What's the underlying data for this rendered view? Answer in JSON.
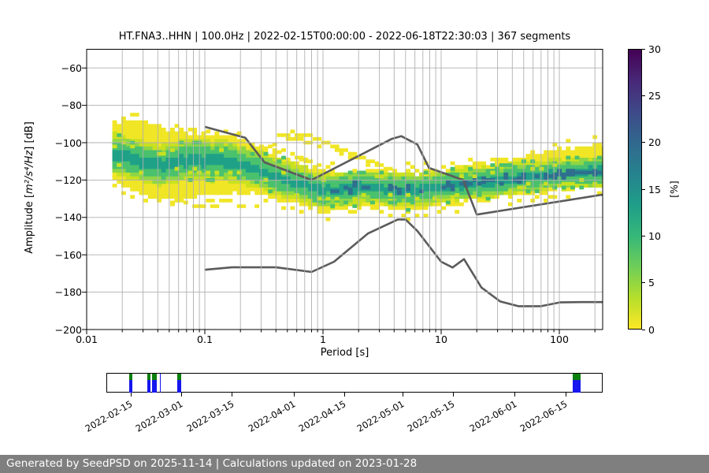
{
  "figure": {
    "footer_text": "Generated by SeedPSD on 2025-11-14 | Calculations updated on 2023-01-28"
  },
  "colors": {
    "frame": "#000000",
    "grid": "#b0b0b0",
    "noise_model": "#5b5b5b",
    "marker_green": "#0b800b",
    "marker_blue": "#1616ee",
    "footer_bg": "#7f7f7f",
    "footer_text": "#ffffff",
    "histogram_palette": [
      "#f0e626",
      "#c9e11f",
      "#8ed645",
      "#4ac16d",
      "#1fa188",
      "#2e6f8e"
    ],
    "colorbar_gradient_bottom_to_top": [
      "#fde725",
      "#b5de2b",
      "#6ece58",
      "#35b779",
      "#1f9e89",
      "#26828e",
      "#31688e",
      "#3e4989",
      "#482878",
      "#440154"
    ]
  },
  "chart_data": {
    "type": "heatmap",
    "title": "HT.FNA3..HHN | 100.0Hz | 2022-02-15T00:00:00 - 2022-06-18T22:30:03 | 367 segments",
    "x_axis": {
      "label": "Period [s]",
      "scale": "log",
      "range": [
        0.01,
        233
      ],
      "tick_values": [
        0.01,
        0.1,
        1,
        10,
        100
      ],
      "tick_labels": [
        "0.01",
        "0.1",
        "1",
        "10",
        "100"
      ],
      "grid": "both major and minor vertical gridlines"
    },
    "y_axis": {
      "label_prefix": "Amplitude [",
      "label_math": "m²/s⁴/Hz",
      "label_suffix": "] [dB]",
      "range": [
        -200,
        -50
      ],
      "tick_values": [
        -60,
        -80,
        -100,
        -120,
        -140,
        -160,
        -180,
        -200
      ],
      "tick_labels": [
        "−60",
        "−80",
        "−100",
        "−120",
        "−140",
        "−160",
        "−180",
        "−200"
      ],
      "grid": "major horizontal gridlines"
    },
    "colorbar": {
      "label": "[%]",
      "range": [
        0,
        30
      ],
      "tick_values": [
        0,
        5,
        10,
        15,
        20,
        25,
        30
      ],
      "tick_labels": [
        "0",
        "5",
        "10",
        "15",
        "20",
        "25",
        "30"
      ],
      "colormap": "viridis reversed (yellow = 0% to dark purple = 30%)"
    },
    "noise_models": {
      "note": "gray reference curves (period s, dB)",
      "high": [
        [
          0.1,
          -91.5
        ],
        [
          0.22,
          -97.4
        ],
        [
          0.32,
          -110.5
        ],
        [
          0.8,
          -120.0
        ],
        [
          3.8,
          -98.0
        ],
        [
          4.6,
          -96.5
        ],
        [
          6.3,
          -101.0
        ],
        [
          7.9,
          -113.5
        ],
        [
          15.4,
          -120.0
        ],
        [
          20.0,
          -138.5
        ],
        [
          233,
          -127.8
        ]
      ],
      "low": [
        [
          0.1,
          -168.0
        ],
        [
          0.17,
          -166.7
        ],
        [
          0.4,
          -166.7
        ],
        [
          0.8,
          -169.2
        ],
        [
          1.24,
          -163.7
        ],
        [
          2.4,
          -148.6
        ],
        [
          4.3,
          -141.1
        ],
        [
          5.0,
          -141.1
        ],
        [
          6.3,
          -147.3
        ],
        [
          10.0,
          -163.7
        ],
        [
          12.5,
          -166.8
        ],
        [
          15.6,
          -162.3
        ],
        [
          21.9,
          -177.5
        ],
        [
          31.6,
          -185.0
        ],
        [
          45.0,
          -187.5
        ],
        [
          70.0,
          -187.5
        ],
        [
          101.0,
          -185.5
        ],
        [
          154.0,
          -185.3
        ],
        [
          233,
          -185.3
        ]
      ]
    },
    "psd_histogram": {
      "description": "probability band: period vs amplitude dB, percentage coded by color (yellow low, teal/blue high)",
      "column_step_octaves": 0.125,
      "db_bin": 2,
      "spine_fields": [
        "period_s",
        "top_db",
        "bottom_db",
        "center_db",
        "w_outer_db",
        "w_mid_db",
        "w_core_db",
        "dense"
      ],
      "spine": [
        [
          0.0165,
          -89,
          -116,
          -106,
          11,
          7,
          3,
          0
        ],
        [
          0.02,
          -87.5,
          -124,
          -107,
          11,
          7,
          3,
          0
        ],
        [
          0.028,
          -89,
          -128,
          -110,
          11,
          7,
          3,
          0
        ],
        [
          0.04,
          -91.5,
          -130.5,
          -112,
          11,
          7,
          3,
          0
        ],
        [
          0.055,
          -93.5,
          -131,
          -110.5,
          11,
          7,
          3,
          0
        ],
        [
          0.075,
          -94,
          -129.5,
          -109,
          11,
          7,
          3,
          0
        ],
        [
          0.105,
          -94.5,
          -128.5,
          -109.5,
          11,
          7,
          3,
          0
        ],
        [
          0.15,
          -95.5,
          -127.5,
          -110,
          11,
          7,
          3,
          0
        ],
        [
          0.21,
          -97.5,
          -127.5,
          -112,
          10.5,
          6.5,
          2.5,
          0
        ],
        [
          0.3,
          -101.5,
          -128.5,
          -115.5,
          10,
          6,
          2,
          0
        ],
        [
          0.45,
          -107,
          -130.5,
          -119,
          10,
          6,
          2,
          0
        ],
        [
          0.65,
          -111.5,
          -133.5,
          -122.5,
          9.5,
          5.5,
          2,
          0
        ],
        [
          0.95,
          -114.5,
          -136.5,
          -125.5,
          9,
          5.5,
          2.2,
          0
        ],
        [
          1.3,
          -115.5,
          -136.5,
          -125.5,
          9,
          5.5,
          2.2,
          1
        ],
        [
          2.0,
          -114.5,
          -135,
          -124,
          9,
          5.5,
          2.2,
          1
        ],
        [
          3.0,
          -114.5,
          -134.5,
          -124,
          8.5,
          5.5,
          2,
          0
        ],
        [
          4.2,
          -115.5,
          -135.5,
          -125,
          9,
          5.5,
          2.2,
          1
        ],
        [
          6.0,
          -116,
          -136,
          -125.5,
          9,
          5.5,
          2.2,
          1
        ],
        [
          8.5,
          -115.5,
          -134.5,
          -124.5,
          8.5,
          5.5,
          2,
          0
        ],
        [
          12,
          -113.5,
          -133,
          -123,
          8.5,
          5.5,
          2.2,
          1
        ],
        [
          18,
          -112,
          -131.5,
          -122,
          8.5,
          5.5,
          2.2,
          1
        ],
        [
          28,
          -110,
          -130,
          -120.5,
          8.5,
          5.5,
          2.2,
          1
        ],
        [
          45,
          -107.5,
          -128,
          -119,
          8.5,
          5.5,
          2.2,
          1
        ],
        [
          75,
          -105,
          -126.5,
          -117.5,
          8,
          5.5,
          2.2,
          1
        ],
        [
          120,
          -103,
          -125,
          -116.5,
          8,
          5.5,
          2.2,
          1
        ],
        [
          190,
          -101,
          -124,
          -115.5,
          8,
          5.5,
          2.2,
          1
        ],
        [
          233,
          -100.5,
          -123.5,
          -115.5,
          8,
          5.5,
          2.2,
          1
        ]
      ],
      "outlier_strands": [
        {
          "prob": 0.95,
          "points": [
            [
              0.42,
              -95.5
            ],
            [
              0.55,
              -94.8
            ],
            [
              0.7,
              -95.5
            ],
            [
              0.85,
              -97
            ],
            [
              1.05,
              -99.5
            ],
            [
              1.4,
              -103
            ],
            [
              1.9,
              -106.5
            ],
            [
              2.6,
              -110
            ],
            [
              3.4,
              -113
            ],
            [
              4.0,
              -114.5
            ]
          ]
        },
        {
          "prob": 0.65,
          "points": [
            [
              0.5,
              -98.5
            ],
            [
              0.65,
              -98.8
            ],
            [
              0.85,
              -100.5
            ],
            [
              1.1,
              -103
            ],
            [
              1.5,
              -106.5
            ],
            [
              2.0,
              -109.5
            ],
            [
              2.6,
              -112
            ]
          ]
        },
        {
          "prob": 0.85,
          "points": [
            [
              0.3,
              -101
            ],
            [
              0.4,
              -103.5
            ],
            [
              0.55,
              -106.5
            ],
            [
              0.75,
              -109.5
            ],
            [
              0.95,
              -112
            ]
          ]
        },
        {
          "prob": 0.5,
          "points": [
            [
              0.05,
              -132.5
            ],
            [
              0.08,
              -133
            ],
            [
              0.13,
              -133.5
            ],
            [
              0.2,
              -134
            ],
            [
              0.3,
              -133.5
            ]
          ]
        },
        {
          "prob": 0.6,
          "points": [
            [
              0.105,
              -93.5
            ],
            [
              0.14,
              -94.5
            ],
            [
              0.19,
              -95.5
            ]
          ]
        }
      ]
    },
    "timeline": {
      "axis_days": [
        -6.7,
        130.2
      ],
      "day_zero_label": "2022-02-15",
      "ticks": [
        {
          "label": "2022-02-15",
          "day": 0
        },
        {
          "label": "2022-03-01",
          "day": 14
        },
        {
          "label": "2022-03-15",
          "day": 28
        },
        {
          "label": "2022-04-01",
          "day": 45
        },
        {
          "label": "2022-04-15",
          "day": 59
        },
        {
          "label": "2022-05-01",
          "day": 75
        },
        {
          "label": "2022-05-15",
          "day": 89
        },
        {
          "label": "2022-06-01",
          "day": 106
        },
        {
          "label": "2022-06-15",
          "day": 120
        }
      ],
      "markers": [
        {
          "start_day": -0.45,
          "end_day": 0.5,
          "green": true
        },
        {
          "start_day": 4.5,
          "end_day": 5.4,
          "green": true
        },
        {
          "start_day": 5.9,
          "end_day": 7.2,
          "green": true
        },
        {
          "start_day": 8.0,
          "end_day": 8.35,
          "green": false
        },
        {
          "start_day": 12.9,
          "end_day": 13.9,
          "green": true
        },
        {
          "start_day": 121.9,
          "end_day": 124.2,
          "green": true
        }
      ]
    }
  }
}
